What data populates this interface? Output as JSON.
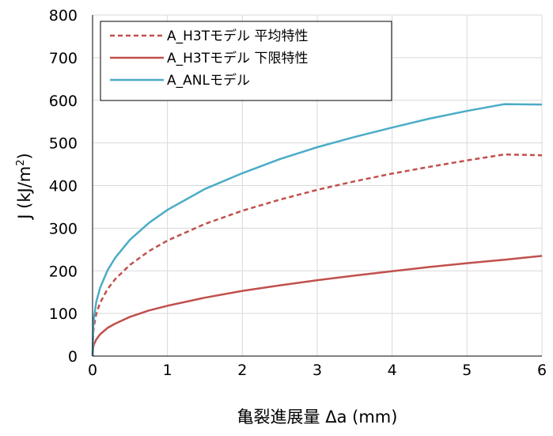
{
  "chart_data": {
    "type": "line",
    "title": "",
    "xlabel": "亀裂進展量 Δa (mm)",
    "ylabel_main": "J (kJ/m",
    "ylabel_sup": "2",
    "ylabel_close": ")",
    "xlim": [
      0,
      6
    ],
    "ylim": [
      0,
      800
    ],
    "x_ticks": [
      0,
      1,
      2,
      3,
      4,
      5,
      6
    ],
    "y_ticks": [
      0,
      100,
      200,
      300,
      400,
      500,
      600,
      700,
      800
    ],
    "grid": true,
    "legend_position": "top-left",
    "series": [
      {
        "name": "A_H3Tモデル 平均特性",
        "color": "#c0504d",
        "dash": "dashed",
        "x": [
          0,
          0.01,
          0.02,
          0.05,
          0.1,
          0.2,
          0.3,
          0.5,
          0.75,
          1,
          1.5,
          2,
          2.5,
          3,
          3.5,
          4,
          4.5,
          5,
          5.5,
          6
        ],
        "y": [
          0,
          57,
          72,
          99,
          125,
          157,
          180,
          214,
          246,
          271,
          310,
          341,
          367,
          390,
          410,
          428,
          444,
          459,
          473,
          471
        ]
      },
      {
        "name": "A_H3Tモデル 下限特性",
        "color": "#c0504d",
        "dash": "solid",
        "x": [
          0,
          0.01,
          0.02,
          0.05,
          0.1,
          0.2,
          0.3,
          0.5,
          0.75,
          1,
          1.5,
          2,
          2.5,
          3,
          3.5,
          4,
          4.5,
          5,
          5.5,
          6
        ],
        "y": [
          0,
          22,
          28,
          39,
          51,
          66,
          76,
          92,
          107,
          118,
          137,
          153,
          166,
          178,
          189,
          199,
          209,
          218,
          226,
          235
        ]
      },
      {
        "name": "A_ANLモデル",
        "color": "#4bacc6",
        "dash": "solid",
        "x": [
          0,
          0.01,
          0.02,
          0.05,
          0.1,
          0.2,
          0.3,
          0.5,
          0.75,
          1,
          1.5,
          2,
          2.5,
          3,
          3.5,
          4,
          4.5,
          5,
          5.5,
          6
        ],
        "y": [
          0,
          73,
          92,
          127,
          160,
          201,
          230,
          273,
          312,
          343,
          392,
          429,
          462,
          490,
          514,
          536,
          557,
          575,
          591,
          590
        ]
      }
    ]
  }
}
